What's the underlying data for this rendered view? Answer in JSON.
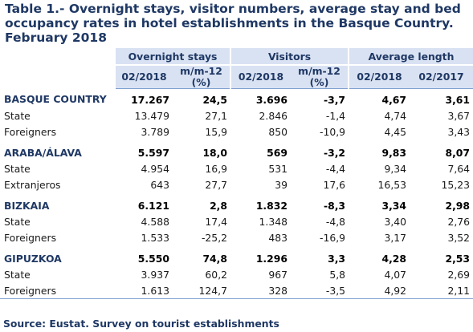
{
  "title": "Table 1.- Overnight stays, visitor numbers, average stay and bed occupancy rates in hotel establishments in the Basque Country. February 2018",
  "groups": {
    "overnight": "Overnight stays",
    "visitors": "Visitors",
    "avg": "Average length"
  },
  "subheaders": {
    "period": "02/2018",
    "change_line1": "m/m-12",
    "change_line2": "(%)",
    "prev_period": "02/2017"
  },
  "rows": [
    {
      "label": "BASQUE COUNTRY",
      "o": "17.267",
      "oc": "24,5",
      "v": "3.696",
      "vc": "-3,7",
      "a1": "4,67",
      "a2": "3,61"
    },
    {
      "label": "State",
      "o": "13.479",
      "oc": "27,1",
      "v": "2.846",
      "vc": "-1,4",
      "a1": "4,74",
      "a2": "3,67"
    },
    {
      "label": "Foreigners",
      "o": "3.789",
      "oc": "15,9",
      "v": "850",
      "vc": "-10,9",
      "a1": "4,45",
      "a2": "3,43"
    },
    {
      "label": "ARABA/ÁLAVA",
      "o": "5.597",
      "oc": "18,0",
      "v": "569",
      "vc": "-3,2",
      "a1": "9,83",
      "a2": "8,07"
    },
    {
      "label": "State",
      "o": "4.954",
      "oc": "16,9",
      "v": "531",
      "vc": "-4,4",
      "a1": "9,34",
      "a2": "7,64"
    },
    {
      "label": "Extranjeros",
      "o": "643",
      "oc": "27,7",
      "v": "39",
      "vc": "17,6",
      "a1": "16,53",
      "a2": "15,23"
    },
    {
      "label": "BIZKAIA",
      "o": "6.121",
      "oc": "2,8",
      "v": "1.832",
      "vc": "-8,3",
      "a1": "3,34",
      "a2": "2,98"
    },
    {
      "label": "State",
      "o": "4.588",
      "oc": "17,4",
      "v": "1.348",
      "vc": "-4,8",
      "a1": "3,40",
      "a2": "2,76"
    },
    {
      "label": "Foreigners",
      "o": "1.533",
      "oc": "-25,2",
      "v": "483",
      "vc": "-16,9",
      "a1": "3,17",
      "a2": "3,52"
    },
    {
      "label": "GIPUZKOA",
      "o": "5.550",
      "oc": "74,8",
      "v": "1.296",
      "vc": "3,3",
      "a1": "4,28",
      "a2": "2,53"
    },
    {
      "label": "State",
      "o": "3.937",
      "oc": "60,2",
      "v": "967",
      "vc": "5,8",
      "a1": "4,07",
      "a2": "2,69"
    },
    {
      "label": "Foreigners",
      "o": "1.613",
      "oc": "124,7",
      "v": "328",
      "vc": "-3,5",
      "a1": "4,92",
      "a2": "2,11"
    }
  ],
  "source": "Source: Eustat. Survey on tourist establishments"
}
